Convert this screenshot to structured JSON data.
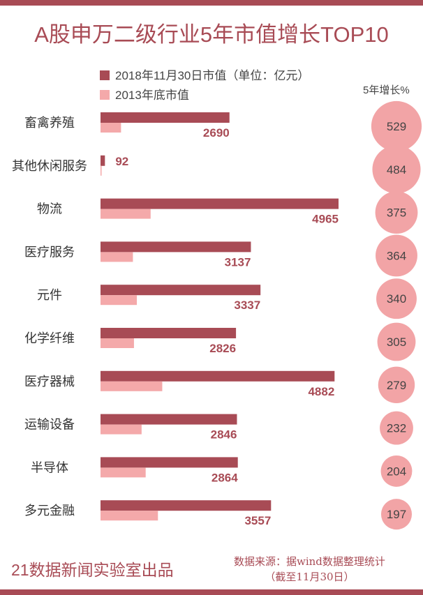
{
  "chart_data": {
    "type": "bar",
    "title": "A股申万二级行业5年市值增长TOP10",
    "categories": [
      "畜禽养殖",
      "其他休闲服务",
      "物流",
      "医疗服务",
      "元件",
      "化学纤维",
      "医疗器械",
      "运输设备",
      "半导体",
      "多元金融"
    ],
    "series": [
      {
        "name": "2018年11月30日市值（单位：亿元）",
        "color": "#a84b55",
        "values": [
          2690,
          92,
          4965,
          3137,
          3337,
          2826,
          4882,
          2846,
          2864,
          3557
        ]
      },
      {
        "name": "2013年底市值",
        "color": "#f4a9aa",
        "values": [
          428,
          16,
          1045,
          676,
          758,
          698,
          1288,
          857,
          942,
          1198
        ]
      }
    ],
    "growth": {
      "label": "5年增长%",
      "color": "#f2a4a6",
      "values": [
        529,
        484,
        375,
        364,
        340,
        305,
        279,
        232,
        204,
        197
      ]
    },
    "xlim": [
      0,
      4965
    ]
  },
  "footer": {
    "credit": "21数据新闻实验室出品",
    "source_line1": "数据来源：据wind数据整理统计",
    "source_line2": "（截至11月30日）"
  }
}
